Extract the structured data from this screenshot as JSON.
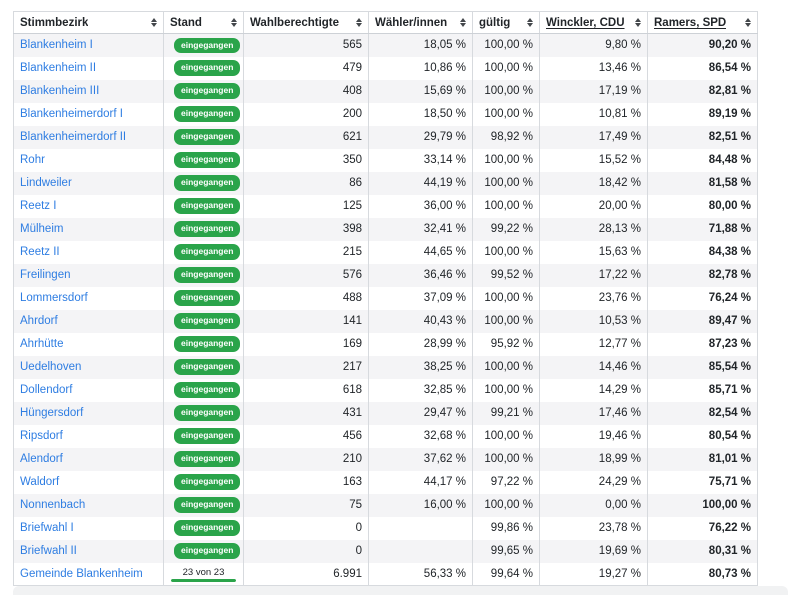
{
  "colors": {
    "link_blue": "#2e7de2",
    "badge_green": "#2aa44a",
    "progress_green": "#2aa44a",
    "row_stripe": "#f4f4f6",
    "border": "#d7dade",
    "text": "#212529"
  },
  "table": {
    "columns": [
      {
        "key": "stimmbezirk",
        "label": "Stimmbezirk",
        "align": "left",
        "underline": false,
        "bold": false
      },
      {
        "key": "stand",
        "label": "Stand",
        "align": "left",
        "underline": false,
        "bold": false
      },
      {
        "key": "wahlberechtigte",
        "label": "Wahlberechtigte",
        "align": "right",
        "underline": false,
        "bold": false
      },
      {
        "key": "waehler",
        "label": "Wähler/innen",
        "align": "right",
        "underline": false,
        "bold": false
      },
      {
        "key": "gueltig",
        "label": "gültig",
        "align": "right",
        "underline": false,
        "bold": false
      },
      {
        "key": "winckler",
        "label": "Winckler, CDU",
        "align": "right",
        "underline": true,
        "bold": false
      },
      {
        "key": "ramers",
        "label": "Ramers, SPD",
        "align": "right",
        "underline": true,
        "bold": true
      }
    ],
    "status_badge_label": "eingegangen",
    "rows": [
      {
        "stimmbezirk": "Blankenheim I",
        "stand": "eingegangen",
        "wahlberechtigte": "565",
        "waehler": "18,05 %",
        "gueltig": "100,00 %",
        "winckler": "9,80 %",
        "ramers": "90,20 %"
      },
      {
        "stimmbezirk": "Blankenheim II",
        "stand": "eingegangen",
        "wahlberechtigte": "479",
        "waehler": "10,86 %",
        "gueltig": "100,00 %",
        "winckler": "13,46 %",
        "ramers": "86,54 %"
      },
      {
        "stimmbezirk": "Blankenheim III",
        "stand": "eingegangen",
        "wahlberechtigte": "408",
        "waehler": "15,69 %",
        "gueltig": "100,00 %",
        "winckler": "17,19 %",
        "ramers": "82,81 %"
      },
      {
        "stimmbezirk": "Blankenheimerdorf I",
        "stand": "eingegangen",
        "wahlberechtigte": "200",
        "waehler": "18,50 %",
        "gueltig": "100,00 %",
        "winckler": "10,81 %",
        "ramers": "89,19 %"
      },
      {
        "stimmbezirk": "Blankenheimerdorf II",
        "stand": "eingegangen",
        "wahlberechtigte": "621",
        "waehler": "29,79 %",
        "gueltig": "98,92 %",
        "winckler": "17,49 %",
        "ramers": "82,51 %"
      },
      {
        "stimmbezirk": "Rohr",
        "stand": "eingegangen",
        "wahlberechtigte": "350",
        "waehler": "33,14 %",
        "gueltig": "100,00 %",
        "winckler": "15,52 %",
        "ramers": "84,48 %"
      },
      {
        "stimmbezirk": "Lindweiler",
        "stand": "eingegangen",
        "wahlberechtigte": "86",
        "waehler": "44,19 %",
        "gueltig": "100,00 %",
        "winckler": "18,42 %",
        "ramers": "81,58 %"
      },
      {
        "stimmbezirk": "Reetz I",
        "stand": "eingegangen",
        "wahlberechtigte": "125",
        "waehler": "36,00 %",
        "gueltig": "100,00 %",
        "winckler": "20,00 %",
        "ramers": "80,00 %"
      },
      {
        "stimmbezirk": "Mülheim",
        "stand": "eingegangen",
        "wahlberechtigte": "398",
        "waehler": "32,41 %",
        "gueltig": "99,22 %",
        "winckler": "28,13 %",
        "ramers": "71,88 %"
      },
      {
        "stimmbezirk": "Reetz II",
        "stand": "eingegangen",
        "wahlberechtigte": "215",
        "waehler": "44,65 %",
        "gueltig": "100,00 %",
        "winckler": "15,63 %",
        "ramers": "84,38 %"
      },
      {
        "stimmbezirk": "Freilingen",
        "stand": "eingegangen",
        "wahlberechtigte": "576",
        "waehler": "36,46 %",
        "gueltig": "99,52 %",
        "winckler": "17,22 %",
        "ramers": "82,78 %"
      },
      {
        "stimmbezirk": "Lommersdorf",
        "stand": "eingegangen",
        "wahlberechtigte": "488",
        "waehler": "37,09 %",
        "gueltig": "100,00 %",
        "winckler": "23,76 %",
        "ramers": "76,24 %"
      },
      {
        "stimmbezirk": "Ahrdorf",
        "stand": "eingegangen",
        "wahlberechtigte": "141",
        "waehler": "40,43 %",
        "gueltig": "100,00 %",
        "winckler": "10,53 %",
        "ramers": "89,47 %"
      },
      {
        "stimmbezirk": "Ahrhütte",
        "stand": "eingegangen",
        "wahlberechtigte": "169",
        "waehler": "28,99 %",
        "gueltig": "95,92 %",
        "winckler": "12,77 %",
        "ramers": "87,23 %"
      },
      {
        "stimmbezirk": "Uedelhoven",
        "stand": "eingegangen",
        "wahlberechtigte": "217",
        "waehler": "38,25 %",
        "gueltig": "100,00 %",
        "winckler": "14,46 %",
        "ramers": "85,54 %"
      },
      {
        "stimmbezirk": "Dollendorf",
        "stand": "eingegangen",
        "wahlberechtigte": "618",
        "waehler": "32,85 %",
        "gueltig": "100,00 %",
        "winckler": "14,29 %",
        "ramers": "85,71 %"
      },
      {
        "stimmbezirk": "Hüngersdorf",
        "stand": "eingegangen",
        "wahlberechtigte": "431",
        "waehler": "29,47 %",
        "gueltig": "99,21 %",
        "winckler": "17,46 %",
        "ramers": "82,54 %"
      },
      {
        "stimmbezirk": "Ripsdorf",
        "stand": "eingegangen",
        "wahlberechtigte": "456",
        "waehler": "32,68 %",
        "gueltig": "100,00 %",
        "winckler": "19,46 %",
        "ramers": "80,54 %"
      },
      {
        "stimmbezirk": "Alendorf",
        "stand": "eingegangen",
        "wahlberechtigte": "210",
        "waehler": "37,62 %",
        "gueltig": "100,00 %",
        "winckler": "18,99 %",
        "ramers": "81,01 %"
      },
      {
        "stimmbezirk": "Waldorf",
        "stand": "eingegangen",
        "wahlberechtigte": "163",
        "waehler": "44,17 %",
        "gueltig": "97,22 %",
        "winckler": "24,29 %",
        "ramers": "75,71 %"
      },
      {
        "stimmbezirk": "Nonnenbach",
        "stand": "eingegangen",
        "wahlberechtigte": "75",
        "waehler": "16,00 %",
        "gueltig": "100,00 %",
        "winckler": "0,00 %",
        "ramers": "100,00 %"
      },
      {
        "stimmbezirk": "Briefwahl I",
        "stand": "eingegangen",
        "wahlberechtigte": "0",
        "waehler": "",
        "gueltig": "99,86 %",
        "winckler": "23,78 %",
        "ramers": "76,22 %"
      },
      {
        "stimmbezirk": "Briefwahl II",
        "stand": "eingegangen",
        "wahlberechtigte": "0",
        "waehler": "",
        "gueltig": "99,65 %",
        "winckler": "19,69 %",
        "ramers": "80,31 %"
      }
    ],
    "total_row": {
      "stimmbezirk": "Gemeinde Blankenheim",
      "stand": "23 von 23",
      "progress_percent": 100,
      "wahlberechtigte": "6.991",
      "waehler": "56,33 %",
      "gueltig": "99,64 %",
      "winckler": "19,27 %",
      "ramers": "80,73 %"
    }
  }
}
